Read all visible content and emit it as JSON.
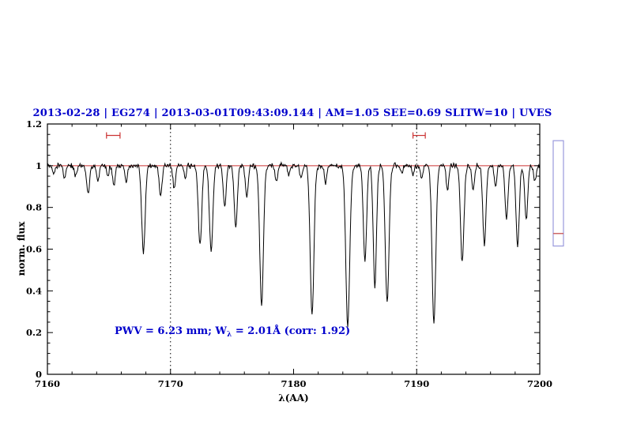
{
  "header": {
    "title": "2013-02-28 | EG274 | 2013-03-01T09:43:09.144 | AM=1.05 SEE=0.69 SLITW=10 | UVES",
    "title_color": "#0000cc"
  },
  "annotation": {
    "pre": "PWV = 6.23 mm; W",
    "sub": "λ",
    "post": " = 2.01Å (corr: 1.92)",
    "color": "#0000cc"
  },
  "chart_data": {
    "type": "line",
    "title": "2013-02-28 | EG274 | 2013-03-01T09:43:09.144 | AM=1.05 SEE=0.69 SLITW=10 | UVES",
    "xlabel": "λ(AA)",
    "ylabel": "norm. flux",
    "xlim": [
      7160,
      7200
    ],
    "ylim": [
      0,
      1.2
    ],
    "grid": false,
    "line_color": "#000000",
    "xticks": {
      "major": [
        7160,
        7170,
        7180,
        7190,
        7200
      ],
      "labels": [
        "7160",
        "7170",
        "7180",
        "7190",
        "7200"
      ],
      "minor_step": 2
    },
    "yticks": {
      "major": [
        0,
        0.2,
        0.4,
        0.6,
        0.8,
        1,
        1.2
      ],
      "labels": [
        "0",
        "0.2",
        "0.4",
        "0.6",
        "0.8",
        "1",
        "1.2"
      ],
      "minor_step": 0.05
    },
    "dotted_vlines": [
      7170,
      7190
    ],
    "continuum_line": {
      "y": 1.0,
      "color": "#cc3333"
    },
    "range_markers": [
      {
        "x_center": 7165.35,
        "half_width": 0.55,
        "y": 1.145
      },
      {
        "x_center": 7190.2,
        "half_width": 0.5,
        "y": 1.145
      }
    ],
    "marker_color": "#cc3333",
    "side_indicator": {
      "top_flux": 1.12,
      "bottom_flux": 0.615,
      "red_mark_flux": 0.675,
      "border_color": "#9999dd",
      "mark_color": "#cc6666"
    },
    "spectrum": {
      "continuum": 1.0,
      "noise_sigma": 0.006,
      "noise_seed": 42,
      "sample_step": 0.05,
      "absorption_lines": [
        [
          7160.5,
          0.045,
          0.1
        ],
        [
          7161.4,
          0.06,
          0.1
        ],
        [
          7162.3,
          0.05,
          0.1
        ],
        [
          7163.3,
          0.13,
          0.12
        ],
        [
          7164.1,
          0.07,
          0.1
        ],
        [
          7164.9,
          0.05,
          0.09
        ],
        [
          7165.4,
          0.1,
          0.1
        ],
        [
          7166.4,
          0.08,
          0.1
        ],
        [
          7167.8,
          0.42,
          0.14
        ],
        [
          7169.2,
          0.14,
          0.12
        ],
        [
          7170.3,
          0.11,
          0.1
        ],
        [
          7171.2,
          0.06,
          0.09
        ],
        [
          7172.4,
          0.38,
          0.14
        ],
        [
          7173.3,
          0.41,
          0.14
        ],
        [
          7174.4,
          0.2,
          0.12
        ],
        [
          7175.3,
          0.29,
          0.13
        ],
        [
          7176.2,
          0.15,
          0.11
        ],
        [
          7177.4,
          0.67,
          0.15
        ],
        [
          7178.6,
          0.08,
          0.1
        ],
        [
          7179.6,
          0.05,
          0.09
        ],
        [
          7180.6,
          0.06,
          0.09
        ],
        [
          7181.5,
          0.72,
          0.15
        ],
        [
          7182.6,
          0.08,
          0.1
        ],
        [
          7184.4,
          0.76,
          0.16
        ],
        [
          7185.8,
          0.46,
          0.13
        ],
        [
          7186.6,
          0.58,
          0.13
        ],
        [
          7187.6,
          0.66,
          0.15
        ],
        [
          7188.8,
          0.04,
          0.09
        ],
        [
          7189.7,
          0.05,
          0.09
        ],
        [
          7190.4,
          0.06,
          0.09
        ],
        [
          7191.4,
          0.76,
          0.15
        ],
        [
          7192.5,
          0.12,
          0.1
        ],
        [
          7193.7,
          0.46,
          0.14
        ],
        [
          7194.6,
          0.12,
          0.1
        ],
        [
          7195.5,
          0.38,
          0.13
        ],
        [
          7196.4,
          0.1,
          0.1
        ],
        [
          7197.3,
          0.26,
          0.12
        ],
        [
          7198.2,
          0.39,
          0.13
        ],
        [
          7198.9,
          0.26,
          0.12
        ],
        [
          7199.6,
          0.07,
          0.1
        ]
      ]
    }
  }
}
